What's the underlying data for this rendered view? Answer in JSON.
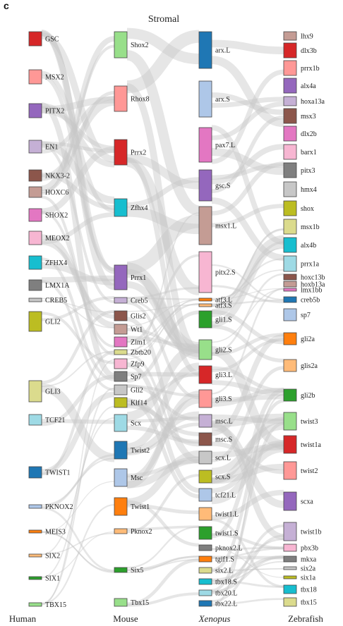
{
  "panel_letter": "c",
  "title": "Stromal",
  "columns": [
    {
      "label": "Human",
      "italic": false,
      "nodes": [
        {
          "name": "GSC",
          "color": "#d62728",
          "range": [
            45,
            65
          ]
        },
        {
          "name": "MSX2",
          "color": "#ff9896",
          "range": [
            99,
            119
          ]
        },
        {
          "name": "PITX2",
          "color": "#9467bd",
          "range": [
            147,
            167
          ]
        },
        {
          "name": "EN1",
          "color": "#c5b0d5",
          "range": [
            199,
            217
          ]
        },
        {
          "name": "NKX3-2",
          "color": "#8c564b",
          "range": [
            241,
            257
          ]
        },
        {
          "name": "HOXC6",
          "color": "#c49c94",
          "range": [
            265,
            280
          ]
        },
        {
          "name": "SHOX2",
          "color": "#e377c2",
          "range": [
            296,
            314
          ]
        },
        {
          "name": "MEOX2",
          "color": "#f7b6d2",
          "range": [
            328,
            347
          ]
        },
        {
          "name": "ZFHX4",
          "color": "#17becf",
          "range": [
            363,
            382
          ]
        },
        {
          "name": "LMX1A",
          "color": "#7f7f7f",
          "range": [
            397,
            412
          ]
        },
        {
          "name": "CREB5",
          "color": "#c7c7c7",
          "range": [
            423,
            428
          ]
        },
        {
          "name": "GLI2",
          "color": "#bcbd22",
          "range": [
            442,
            470
          ]
        },
        {
          "name": "GLI3",
          "color": "#dbdb8d",
          "range": [
            540,
            570
          ]
        },
        {
          "name": "TCF21",
          "color": "#9edae5",
          "range": [
            588,
            603
          ]
        },
        {
          "name": "TWIST1",
          "color": "#1f77b4",
          "range": [
            662,
            678
          ]
        },
        {
          "name": "PKNOX2",
          "color": "#aec7e8",
          "range": [
            716,
            721
          ]
        },
        {
          "name": "MEIS3",
          "color": "#ff7f0e",
          "range": [
            752,
            756
          ]
        },
        {
          "name": "SIX2",
          "color": "#ffbb78",
          "range": [
            786,
            790
          ]
        },
        {
          "name": "SIX1",
          "color": "#2ca02c",
          "range": [
            818,
            822
          ]
        },
        {
          "name": "TBX15",
          "color": "#98df8a",
          "range": [
            855,
            860
          ]
        }
      ]
    },
    {
      "label": "Mouse",
      "italic": false,
      "nodes": [
        {
          "name": "Shox2",
          "color": "#98df8a",
          "range": [
            45,
            82
          ]
        },
        {
          "name": "Rhox8",
          "color": "#ff9896",
          "range": [
            122,
            158
          ]
        },
        {
          "name": "Prrx2",
          "color": "#d62728",
          "range": [
            198,
            234
          ]
        },
        {
          "name": "Zfhx4",
          "color": "#17becf",
          "range": [
            282,
            307
          ]
        },
        {
          "name": "Prrx1",
          "color": "#9467bd",
          "range": [
            376,
            411
          ]
        },
        {
          "name": "Creb5",
          "color": "#c5b0d5",
          "range": [
            422,
            430
          ]
        },
        {
          "name": "Glis2",
          "color": "#8c564b",
          "range": [
            441,
            455
          ]
        },
        {
          "name": "Wt1",
          "color": "#c49c94",
          "range": [
            460,
            474
          ]
        },
        {
          "name": "Zim1",
          "color": "#e377c2",
          "range": [
            478,
            492
          ]
        },
        {
          "name": "Zbtb20",
          "color": "#dbdb8d",
          "range": [
            496,
            503
          ]
        },
        {
          "name": "Zfp9",
          "color": "#f7b6d2",
          "range": [
            509,
            523
          ]
        },
        {
          "name": "Sp7",
          "color": "#7f7f7f",
          "range": [
            527,
            541
          ]
        },
        {
          "name": "Gli2",
          "color": "#c7c7c7",
          "range": [
            546,
            560
          ]
        },
        {
          "name": "Klf14",
          "color": "#bcbd22",
          "range": [
            564,
            578
          ]
        },
        {
          "name": "Scx",
          "color": "#9edae5",
          "range": [
            588,
            612
          ]
        },
        {
          "name": "Twist2",
          "color": "#1f77b4",
          "range": [
            626,
            651
          ]
        },
        {
          "name": "Msc",
          "color": "#aec7e8",
          "range": [
            665,
            690
          ]
        },
        {
          "name": "Twist1",
          "color": "#ff7f0e",
          "range": [
            706,
            731
          ]
        },
        {
          "name": "Pknox2",
          "color": "#ffbb78",
          "range": [
            750,
            757
          ]
        },
        {
          "name": "Six5",
          "color": "#2ca02c",
          "range": [
            805,
            812
          ]
        },
        {
          "name": "Tbx15",
          "color": "#98df8a",
          "range": [
            849,
            860
          ]
        }
      ]
    },
    {
      "label": "Xenopus",
      "italic": true,
      "nodes": [
        {
          "name": "arx.L",
          "color": "#1f77b4",
          "range": [
            45,
            97
          ]
        },
        {
          "name": "arx.S",
          "color": "#aec7e8",
          "range": [
            115,
            166
          ]
        },
        {
          "name": "pax7.L",
          "color": "#e377c2",
          "range": [
            181,
            230
          ]
        },
        {
          "name": "gsc.S",
          "color": "#9467bd",
          "range": [
            241,
            285
          ]
        },
        {
          "name": "msx1.L",
          "color": "#c49c94",
          "range": [
            293,
            347
          ]
        },
        {
          "name": "pitx2.S",
          "color": "#f7b6d2",
          "range": [
            357,
            415
          ]
        },
        {
          "name": "atf3.L",
          "color": "#ff7f0e",
          "range": [
            423,
            427
          ]
        },
        {
          "name": "atf3.S",
          "color": "#ffbb78",
          "range": [
            431,
            435
          ]
        },
        {
          "name": "gli1.S",
          "color": "#2ca02c",
          "range": [
            441,
            465
          ]
        },
        {
          "name": "gli2.S",
          "color": "#98df8a",
          "range": [
            482,
            510
          ]
        },
        {
          "name": "gli3.L",
          "color": "#d62728",
          "range": [
            519,
            544
          ]
        },
        {
          "name": "gli3.S",
          "color": "#ff9896",
          "range": [
            553,
            578
          ]
        },
        {
          "name": "msc.L",
          "color": "#c5b0d5",
          "range": [
            588,
            606
          ]
        },
        {
          "name": "msc.S",
          "color": "#8c564b",
          "range": [
            614,
            632
          ]
        },
        {
          "name": "scx.L",
          "color": "#c7c7c7",
          "range": [
            640,
            658
          ]
        },
        {
          "name": "scx.S",
          "color": "#bcbd22",
          "range": [
            667,
            685
          ]
        },
        {
          "name": "tcf21.L",
          "color": "#aec7e8",
          "range": [
            693,
            711
          ]
        },
        {
          "name": "twist1.L",
          "color": "#ffbb78",
          "range": [
            720,
            738
          ]
        },
        {
          "name": "twist1.S",
          "color": "#2ca02c",
          "range": [
            747,
            765
          ]
        },
        {
          "name": "pknox2.L",
          "color": "#7f7f7f",
          "range": [
            773,
            781
          ]
        },
        {
          "name": "tgif1.S",
          "color": "#ff7f0e",
          "range": [
            789,
            797
          ]
        },
        {
          "name": "six2.L",
          "color": "#dbdb8d",
          "range": [
            805,
            813
          ]
        },
        {
          "name": "tbx18.S",
          "color": "#17becf",
          "range": [
            821,
            829
          ]
        },
        {
          "name": "tbx20.L",
          "color": "#9edae5",
          "range": [
            837,
            845
          ]
        },
        {
          "name": "tbx22.L",
          "color": "#1f77b4",
          "range": [
            852,
            860
          ]
        }
      ]
    },
    {
      "label": "Zebrafish",
      "italic": false,
      "nodes": [
        {
          "name": "lhx9",
          "color": "#c49c94",
          "range": [
            45,
            57
          ]
        },
        {
          "name": "dlx3b",
          "color": "#d62728",
          "range": [
            61,
            82
          ]
        },
        {
          "name": "prrx1b",
          "color": "#ff9896",
          "range": [
            86,
            107
          ]
        },
        {
          "name": "alx4a",
          "color": "#9467bd",
          "range": [
            111,
            132
          ]
        },
        {
          "name": "hoxa13a",
          "color": "#c5b0d5",
          "range": [
            137,
            150
          ]
        },
        {
          "name": "msx3",
          "color": "#8c564b",
          "range": [
            154,
            175
          ]
        },
        {
          "name": "dlx2b",
          "color": "#e377c2",
          "range": [
            179,
            200
          ]
        },
        {
          "name": "barx1",
          "color": "#f7b6d2",
          "range": [
            205,
            226
          ]
        },
        {
          "name": "pitx3",
          "color": "#7f7f7f",
          "range": [
            231,
            252
          ]
        },
        {
          "name": "hmx4",
          "color": "#c7c7c7",
          "range": [
            258,
            279
          ]
        },
        {
          "name": "shox",
          "color": "#bcbd22",
          "range": [
            285,
            306
          ]
        },
        {
          "name": "msx1b",
          "color": "#dbdb8d",
          "range": [
            311,
            332
          ]
        },
        {
          "name": "alx4b",
          "color": "#17becf",
          "range": [
            337,
            358
          ]
        },
        {
          "name": "prrx1a",
          "color": "#9edae5",
          "range": [
            363,
            385
          ]
        },
        {
          "name": "hoxc13b",
          "color": "#8c564b",
          "range": [
            389,
            397
          ]
        },
        {
          "name": "hoxb13a",
          "color": "#c49c94",
          "range": [
            399,
            407
          ]
        },
        {
          "name": "lmx1bb",
          "color": "#e377c2",
          "range": [
            409,
            413
          ]
        },
        {
          "name": "creb5b",
          "color": "#1f77b4",
          "range": [
            421,
            429
          ]
        },
        {
          "name": "sp7",
          "color": "#aec7e8",
          "range": [
            438,
            455
          ]
        },
        {
          "name": "gli2a",
          "color": "#ff7f0e",
          "range": [
            472,
            489
          ]
        },
        {
          "name": "glis2a",
          "color": "#ffbb78",
          "range": [
            510,
            527
          ]
        },
        {
          "name": "gli2b",
          "color": "#2ca02c",
          "range": [
            552,
            569
          ]
        },
        {
          "name": "twist3",
          "color": "#98df8a",
          "range": [
            585,
            610
          ]
        },
        {
          "name": "twist1a",
          "color": "#d62728",
          "range": [
            618,
            643
          ]
        },
        {
          "name": "twist2",
          "color": "#ff9896",
          "range": [
            655,
            680
          ]
        },
        {
          "name": "scxa",
          "color": "#9467bd",
          "range": [
            698,
            724
          ]
        },
        {
          "name": "twist1b",
          "color": "#c5b0d5",
          "range": [
            741,
            767
          ]
        },
        {
          "name": "pbx3b",
          "color": "#f7b6d2",
          "range": [
            772,
            782
          ]
        },
        {
          "name": "mkxa",
          "color": "#7f7f7f",
          "range": [
            789,
            797
          ]
        },
        {
          "name": "six2a",
          "color": "#c7c7c7",
          "range": [
            804,
            808
          ]
        },
        {
          "name": "six1a",
          "color": "#bcbd22",
          "range": [
            817,
            821
          ]
        },
        {
          "name": "tbx18",
          "color": "#17becf",
          "range": [
            830,
            842
          ]
        },
        {
          "name": "tbx15",
          "color": "#dbdb8d",
          "range": [
            848,
            860
          ]
        }
      ]
    }
  ]
}
